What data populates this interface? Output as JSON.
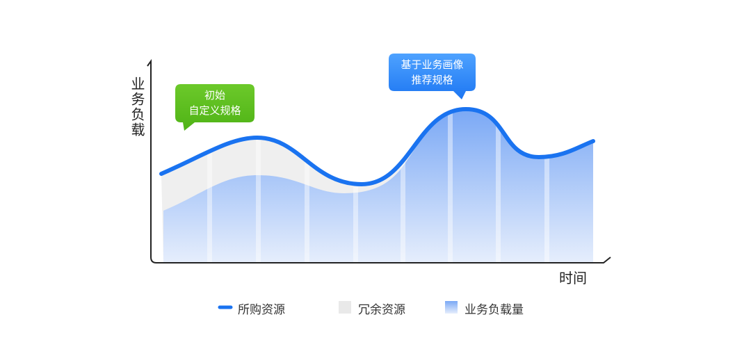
{
  "axes": {
    "y_label": "业务负载",
    "x_label": "时间"
  },
  "callouts": [
    {
      "lines": [
        "初始",
        "自定义规格"
      ]
    },
    {
      "lines": [
        "基于业务画像",
        "推荐规格"
      ]
    }
  ],
  "legend": [
    "所购资源",
    "冗余资源",
    "业务负载量"
  ]
}
